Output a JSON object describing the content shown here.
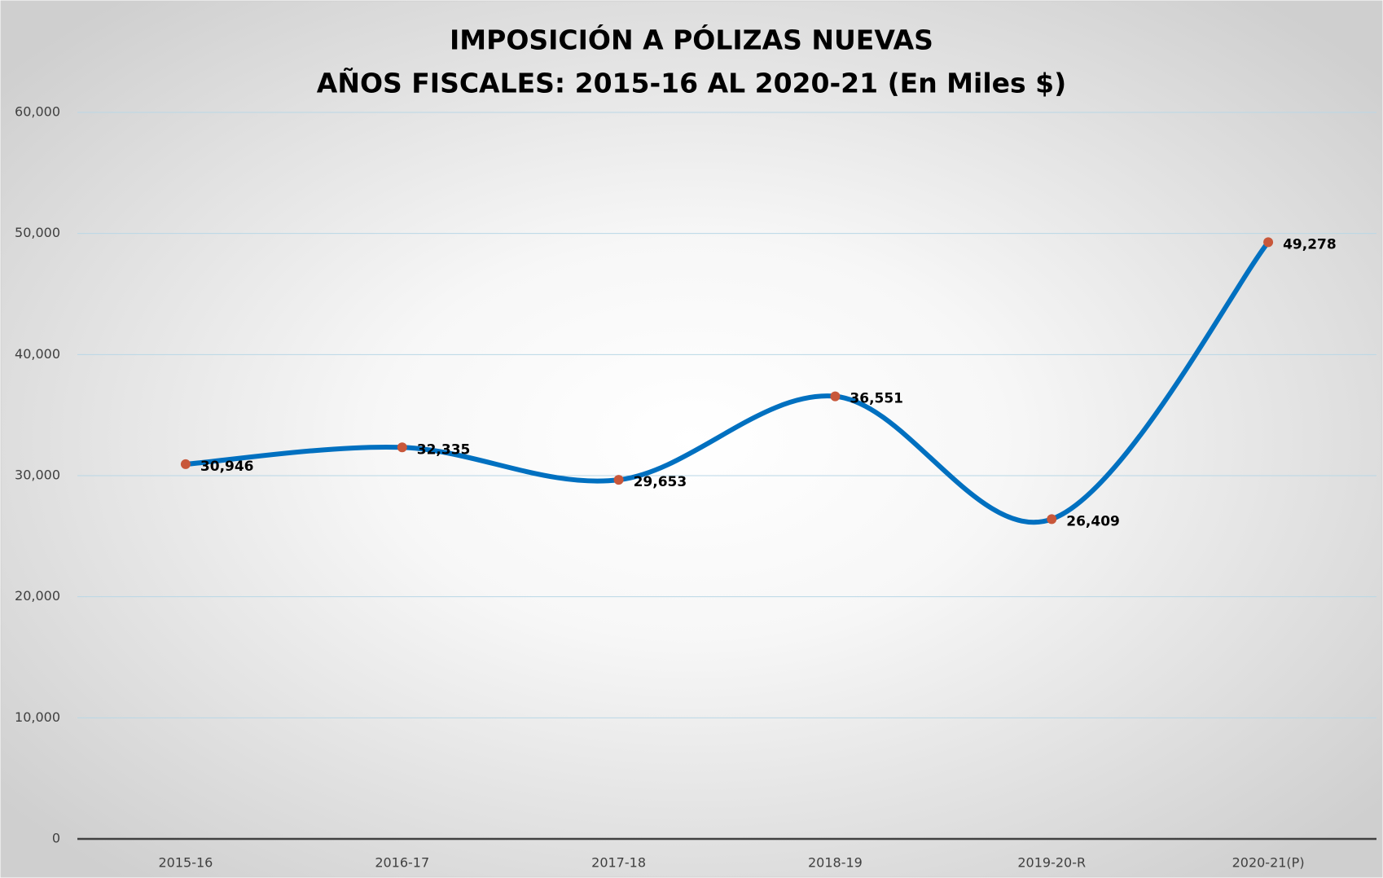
{
  "chart_data": {
    "type": "line",
    "title": "IMPOSICIÓN A PÓLIZAS NUEVAS",
    "subtitle": "AÑOS FISCALES: 2015-16 AL 2020-21 (En Miles $)",
    "categories": [
      "2015-16",
      "2016-17",
      "2017-18",
      "2018-19",
      "2019-20-R",
      "2020-21(P)"
    ],
    "series": [
      {
        "name": "Imposición",
        "color": "#0070c0",
        "marker_color": "#c8573a",
        "values": [
          30946,
          32335,
          29653,
          36551,
          26409,
          49278
        ],
        "value_labels": [
          "30,946",
          "32,335",
          "29,653",
          "36,551",
          "26,409",
          "49,278"
        ]
      }
    ],
    "ylim": [
      0,
      60000
    ],
    "yticks": [
      0,
      {
        "value": 10000,
        "label": "10,000"
      },
      {
        "value": 20000,
        "label": "20,000"
      },
      {
        "value": 30000,
        "label": "30,000"
      },
      {
        "value": 40000,
        "label": "40,000"
      },
      {
        "value": 50000,
        "label": "50,000"
      },
      {
        "value": 60000,
        "label": "60,000"
      }
    ],
    "grid": true,
    "smooth": true
  }
}
